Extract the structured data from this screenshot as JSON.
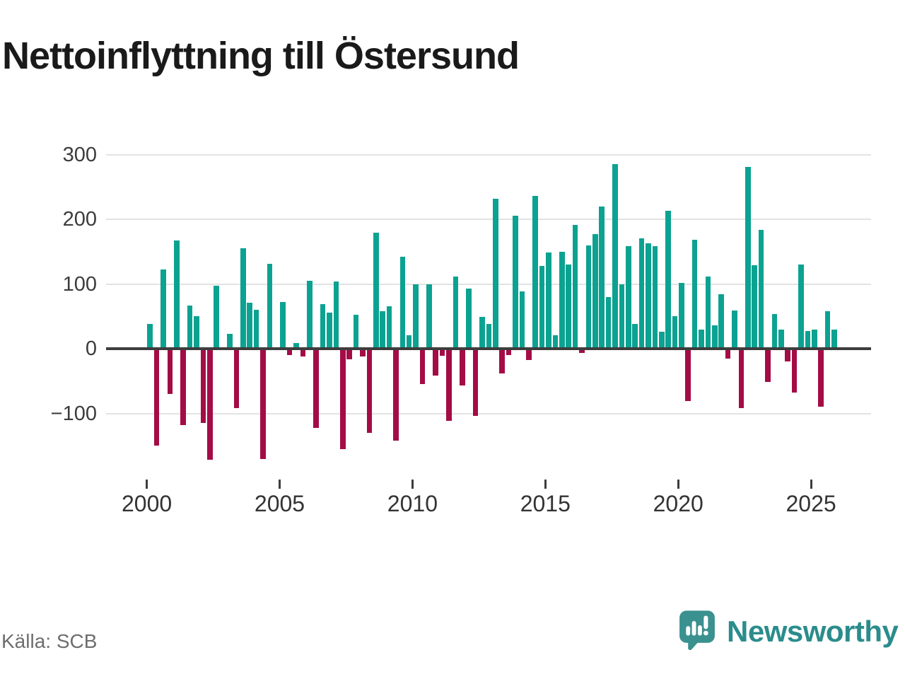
{
  "title": "Nettoinflyttning till Östersund",
  "source": "Källa: SCB",
  "branding": {
    "name": "Newsworthy",
    "icon": "newsworthy-bubble-chart-icon",
    "text_color": "#2b8c8c",
    "icon_color": "#3a9190"
  },
  "chart_data": {
    "type": "bar",
    "title": "Nettoinflyttning till Östersund",
    "start_year": 2000,
    "periods_per_year": 4,
    "values": [
      38,
      -150,
      122,
      -70,
      167,
      -118,
      67,
      50,
      -115,
      -172,
      97,
      0,
      23,
      -92,
      155,
      71,
      60,
      -170,
      131,
      0,
      72,
      -10,
      9,
      -12,
      105,
      -122,
      69,
      56,
      104,
      -155,
      -16,
      53,
      -12,
      -130,
      179,
      58,
      66,
      -142,
      142,
      21,
      100,
      -55,
      100,
      -42,
      -11,
      -112,
      112,
      -57,
      93,
      -104,
      49,
      38,
      232,
      -38,
      -10,
      206,
      88,
      -18,
      236,
      128,
      149,
      21,
      150,
      130,
      191,
      -7,
      160,
      177,
      220,
      80,
      285,
      100,
      158,
      38,
      170,
      163,
      159,
      26,
      213,
      50,
      102,
      -81,
      168,
      29,
      111,
      36,
      84,
      -15,
      59,
      -92,
      281,
      129,
      184,
      -51,
      54,
      30,
      -20,
      -68,
      130,
      27,
      29,
      -90,
      58,
      30
    ],
    "y_ticks": [
      300,
      200,
      100,
      0,
      -100
    ],
    "y_tick_labels": [
      "300",
      "200",
      "100",
      "0",
      "−100"
    ],
    "x_tick_years": [
      2000,
      2005,
      2010,
      2015,
      2020,
      2025
    ],
    "x_tick_labels": [
      "2000",
      "2005",
      "2010",
      "2015",
      "2020",
      "2025"
    ],
    "ylim": [
      -190,
      330
    ],
    "grid": "horizontal",
    "legend": "none",
    "positive_color": "#0CA291",
    "negative_color": "#A40C46",
    "axis_color": "#3d3d3d",
    "gridline_color": "#e3e3e3"
  }
}
